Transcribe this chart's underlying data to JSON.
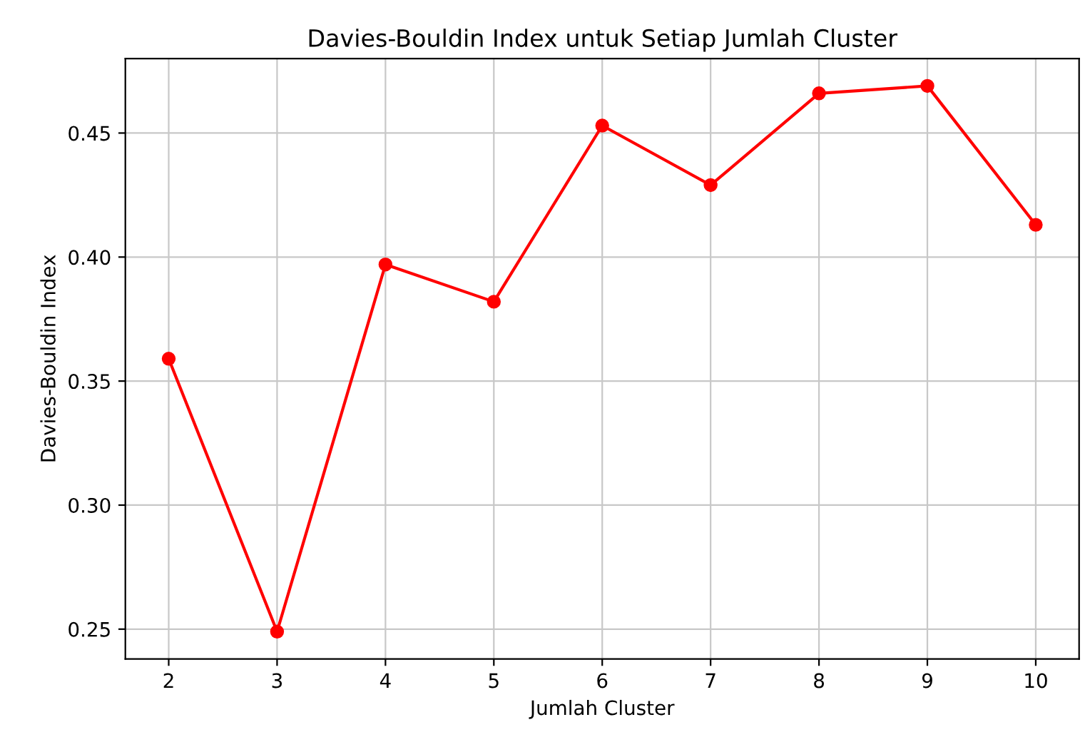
{
  "chart_data": {
    "type": "line",
    "title": "Davies-Bouldin Index untuk Setiap Jumlah Cluster",
    "xlabel": "Jumlah Cluster",
    "ylabel": "Davies-Bouldin Index",
    "x": [
      2,
      3,
      4,
      5,
      6,
      7,
      8,
      9,
      10
    ],
    "series": [
      {
        "color": "#ff0000",
        "values": [
          0.359,
          0.249,
          0.397,
          0.382,
          0.453,
          0.429,
          0.466,
          0.469,
          0.413
        ]
      }
    ],
    "xlim": [
      1.6,
      10.4
    ],
    "xticks": [
      2,
      3,
      4,
      5,
      6,
      7,
      8,
      9,
      10
    ],
    "ylim": [
      0.238,
      0.48
    ],
    "yticks": [
      {
        "value": 0.25,
        "label": "0.25"
      },
      {
        "value": 0.3,
        "label": "0.30"
      },
      {
        "value": 0.35,
        "label": "0.35"
      },
      {
        "value": 0.4,
        "label": "0.40"
      },
      {
        "value": 0.45,
        "label": "0.45"
      }
    ],
    "grid": true,
    "marker": "circle",
    "line_style": "solid"
  }
}
